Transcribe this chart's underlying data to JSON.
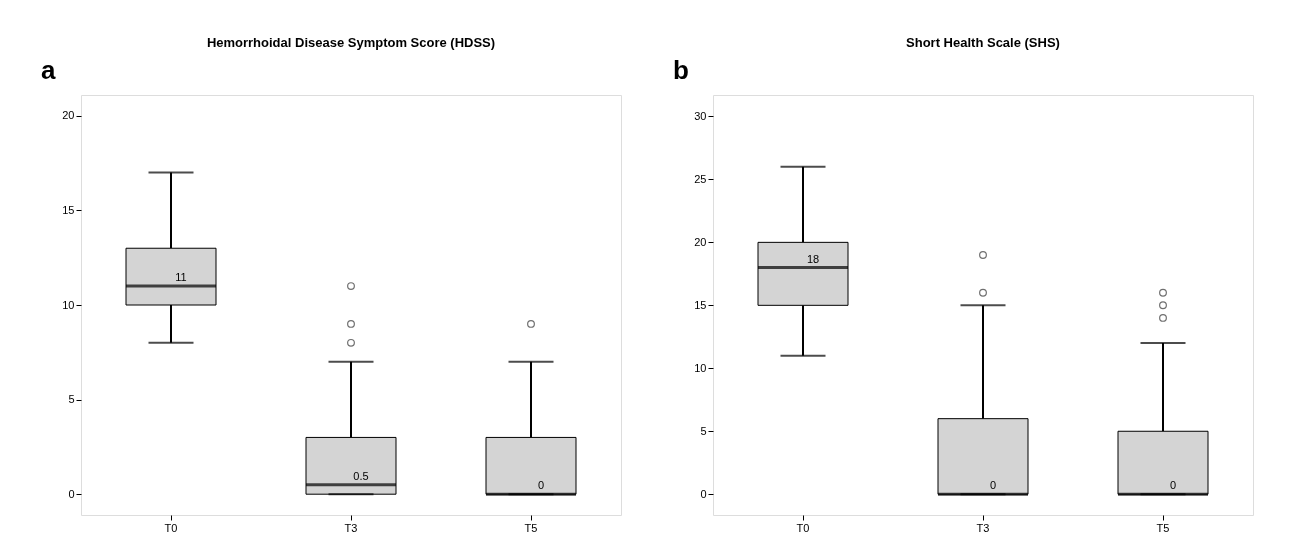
{
  "chart_data": [
    {
      "type": "box",
      "title": "Hemorrhoidal Disease Symptom Score (HDSS)",
      "categories": [
        "T0",
        "T3",
        "T5"
      ],
      "ylim": [
        -1.1,
        21.1
      ],
      "yticks": [
        0,
        5,
        10,
        15,
        20
      ],
      "grid": false,
      "legend": false,
      "series": [
        {
          "color": "#d4d4d4",
          "boxes": [
            {
              "low": 8,
              "q1": 10,
              "median": 11,
              "q3": 13,
              "high": 17
            },
            {
              "low": 0,
              "q1": 0,
              "median": 0.5,
              "q3": 3,
              "high": 7,
              "outliers": [
                8,
                9,
                11
              ]
            },
            {
              "low": 0,
              "q1": 0,
              "median": 0,
              "q3": 3,
              "high": 7,
              "outliers": [
                9
              ]
            }
          ]
        }
      ],
      "annotations": [
        "a",
        {
          "text": "11",
          "x": "T0",
          "y": 11
        },
        {
          "text": "0.5",
          "x": "T3",
          "y": 0.5
        },
        {
          "text": "0",
          "x": "T5",
          "y": 0
        }
      ]
    },
    {
      "type": "box",
      "title": "Short Health Scale (SHS)",
      "categories": [
        "T0",
        "T3",
        "T5"
      ],
      "ylim": [
        -1.65,
        31.7
      ],
      "yticks": [
        0,
        5,
        10,
        15,
        20,
        25,
        30
      ],
      "grid": false,
      "legend": false,
      "series": [
        {
          "color": "#d4d4d4",
          "boxes": [
            {
              "low": 11,
              "q1": 15,
              "median": 18,
              "q3": 20,
              "high": 26
            },
            {
              "low": 0,
              "q1": 0,
              "median": 0,
              "q3": 6,
              "high": 15,
              "outliers": [
                16,
                19
              ]
            },
            {
              "low": 0,
              "q1": 0,
              "median": 0,
              "q3": 5,
              "high": 12,
              "outliers": [
                14,
                15,
                16
              ]
            }
          ]
        }
      ],
      "annotations": [
        "b",
        {
          "text": "18",
          "x": "T0",
          "y": 18
        },
        {
          "text": "0",
          "x": "T3",
          "y": 0
        },
        {
          "text": "0",
          "x": "T5",
          "y": 0
        }
      ]
    }
  ]
}
